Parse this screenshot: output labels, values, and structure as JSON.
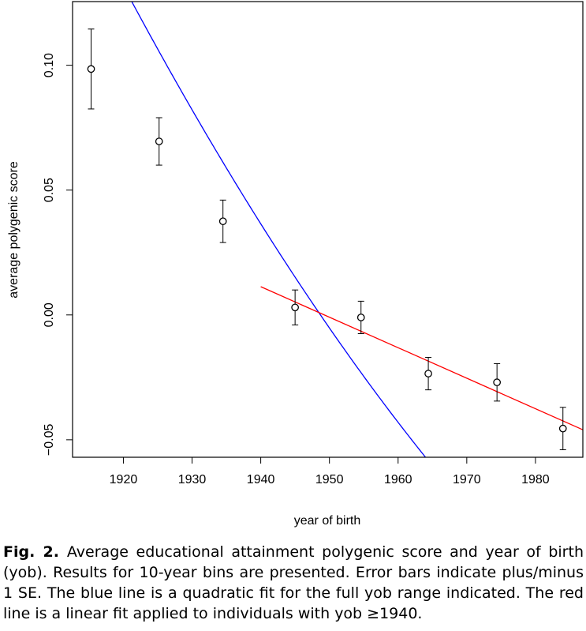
{
  "chart_data": {
    "type": "scatter",
    "xlabel": "year of birth",
    "ylabel": "average polygenic score",
    "xlim": [
      1912.6,
      1986.9
    ],
    "ylim": [
      -0.057,
      0.1255
    ],
    "x_ticks": [
      1920,
      1930,
      1940,
      1950,
      1960,
      1970,
      1980
    ],
    "x_tick_labels": [
      "1920",
      "1930",
      "1940",
      "1950",
      "1960",
      "1970",
      "1980"
    ],
    "y_ticks": [
      0.1,
      0.05,
      0.0,
      -0.05
    ],
    "y_tick_labels": [
      "0.10",
      "0.05",
      "0.00",
      "−0.05"
    ],
    "grid": false,
    "points": [
      {
        "x": 1915.3,
        "y": 0.0985,
        "se": 0.016
      },
      {
        "x": 1925.2,
        "y": 0.0695,
        "se": 0.0095
      },
      {
        "x": 1934.5,
        "y": 0.0375,
        "se": 0.0085
      },
      {
        "x": 1945.0,
        "y": 0.003,
        "se": 0.007
      },
      {
        "x": 1954.6,
        "y": -0.001,
        "se": 0.0065
      },
      {
        "x": 1964.4,
        "y": -0.0235,
        "se": 0.0065
      },
      {
        "x": 1974.4,
        "y": -0.027,
        "se": 0.0075
      },
      {
        "x": 1984.0,
        "y": -0.0455,
        "se": 0.0085
      }
    ],
    "quadratic_fit": {
      "color": "#0000ff",
      "x_range": [
        1912.6,
        1986.9
      ],
      "a": 1.967e-05,
      "b": -0.003976,
      "c": 1950,
      "d": -0.00522
    },
    "linear_fit": {
      "color": "#ff0000",
      "x_range": [
        1940,
        1986.9
      ],
      "slope": -0.001222,
      "c": 1950,
      "d": -0.0009
    },
    "point_color": "#000000"
  },
  "caption": {
    "label": "Fig. 2.",
    "text": "Average educational attainment polygenic score and year of birth (yob). Results for 10-year bins are presented. Error bars indicate plus/minus 1 SE. The blue line is a quadratic fit for the full yob range indicated. The red line is a linear fit applied to individuals with yob ≥1940."
  }
}
